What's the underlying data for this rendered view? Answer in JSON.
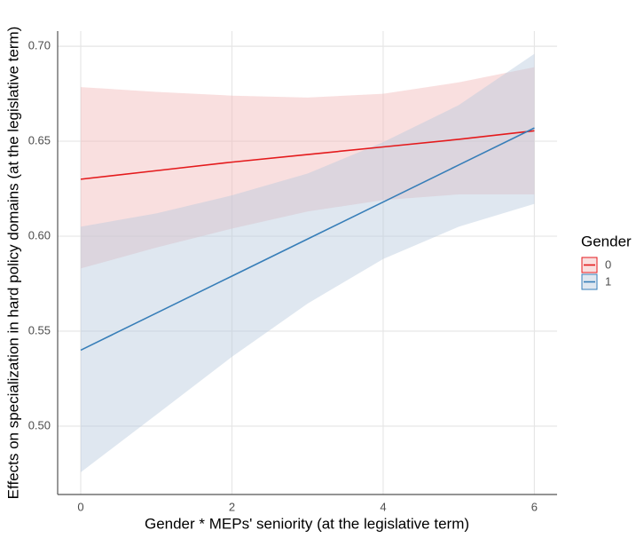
{
  "chart_data": {
    "type": "line",
    "x_label": "Gender *  MEPs' seniority (at the legislative term)",
    "y_label": "Effects on specialization in hard policy domains (at the legislative term)",
    "legend_title": "Gender",
    "legend_position": "right",
    "grid": true,
    "x": [
      0,
      1,
      2,
      3,
      4,
      5,
      6
    ],
    "xlim": [
      -0.305,
      6.3
    ],
    "xticks": [
      0,
      2,
      4,
      6
    ],
    "ylim": [
      0.464,
      0.708
    ],
    "yticks": [
      {
        "value": 0.5,
        "label": "0.50"
      },
      {
        "value": 0.55,
        "label": "0.55"
      },
      {
        "value": 0.6,
        "label": "0.60"
      },
      {
        "value": 0.65,
        "label": "0.65"
      },
      {
        "value": 0.7,
        "label": "0.70"
      }
    ],
    "series": [
      {
        "name": "0",
        "color": "#e41a1c",
        "band_color": "#f2b8b8",
        "values": [
          0.63,
          0.6345,
          0.639,
          0.643,
          0.647,
          0.651,
          0.6555
        ],
        "lower": [
          0.583,
          0.594,
          0.604,
          0.613,
          0.619,
          0.622,
          0.622
        ],
        "upper": [
          0.6785,
          0.676,
          0.674,
          0.673,
          0.675,
          0.681,
          0.689
        ]
      },
      {
        "name": "1",
        "color": "#377eb8",
        "band_color": "#b9c9dd",
        "values": [
          0.54,
          0.5595,
          0.579,
          0.5985,
          0.618,
          0.6375,
          0.657
        ],
        "lower": [
          0.4757,
          0.506,
          0.5365,
          0.5645,
          0.588,
          0.605,
          0.617
        ],
        "upper": [
          0.605,
          0.612,
          0.6215,
          0.633,
          0.6495,
          0.669,
          0.696
        ]
      }
    ]
  }
}
